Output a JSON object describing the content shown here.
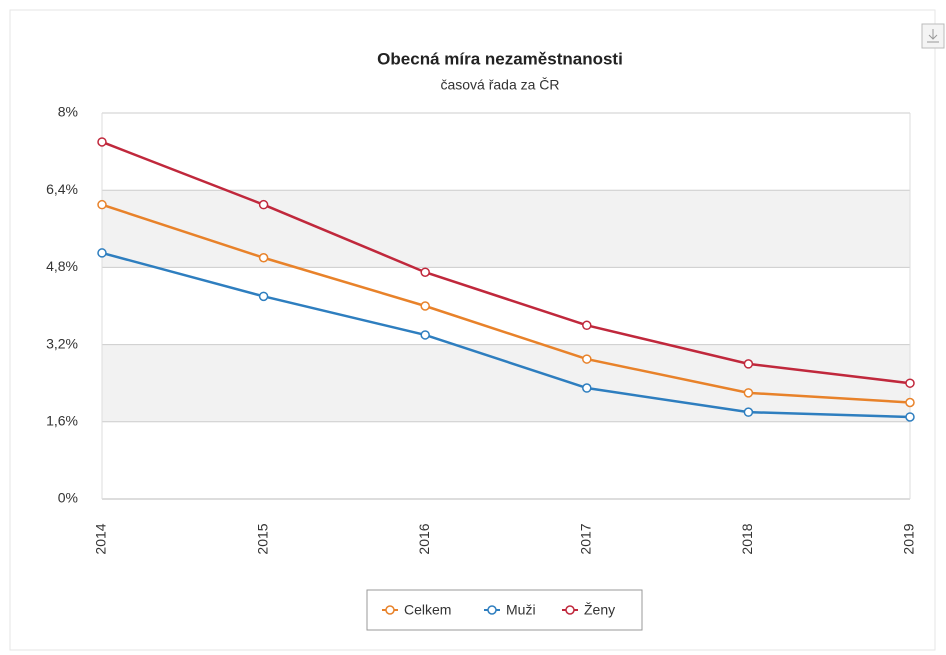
{
  "chart_data": {
    "type": "line",
    "title": "Obecná míra nezaměstnanosti",
    "subtitle": "časová řada za ČR",
    "categories": [
      "2014",
      "2015",
      "2016",
      "2017",
      "2018",
      "2019"
    ],
    "series": [
      {
        "name": "Celkem",
        "color": "#e8822a",
        "values": [
          6.1,
          5.0,
          4.0,
          2.9,
          2.2,
          2.0
        ]
      },
      {
        "name": "Muži",
        "color": "#2e7ebf",
        "values": [
          5.1,
          4.2,
          3.4,
          2.3,
          1.8,
          1.7
        ]
      },
      {
        "name": "Ženy",
        "color": "#c0283c",
        "values": [
          7.4,
          6.1,
          4.7,
          3.6,
          2.8,
          2.4
        ]
      }
    ],
    "ylim": [
      0,
      8
    ],
    "yticks": [
      {
        "value": 0,
        "label": "0%"
      },
      {
        "value": 1.6,
        "label": "1,6%"
      },
      {
        "value": 3.2,
        "label": "3,2%"
      },
      {
        "value": 4.8,
        "label": "4,8%"
      },
      {
        "value": 6.4,
        "label": "6,4%"
      },
      {
        "value": 8,
        "label": "8%"
      }
    ],
    "grid": true,
    "legend": "bottom"
  }
}
